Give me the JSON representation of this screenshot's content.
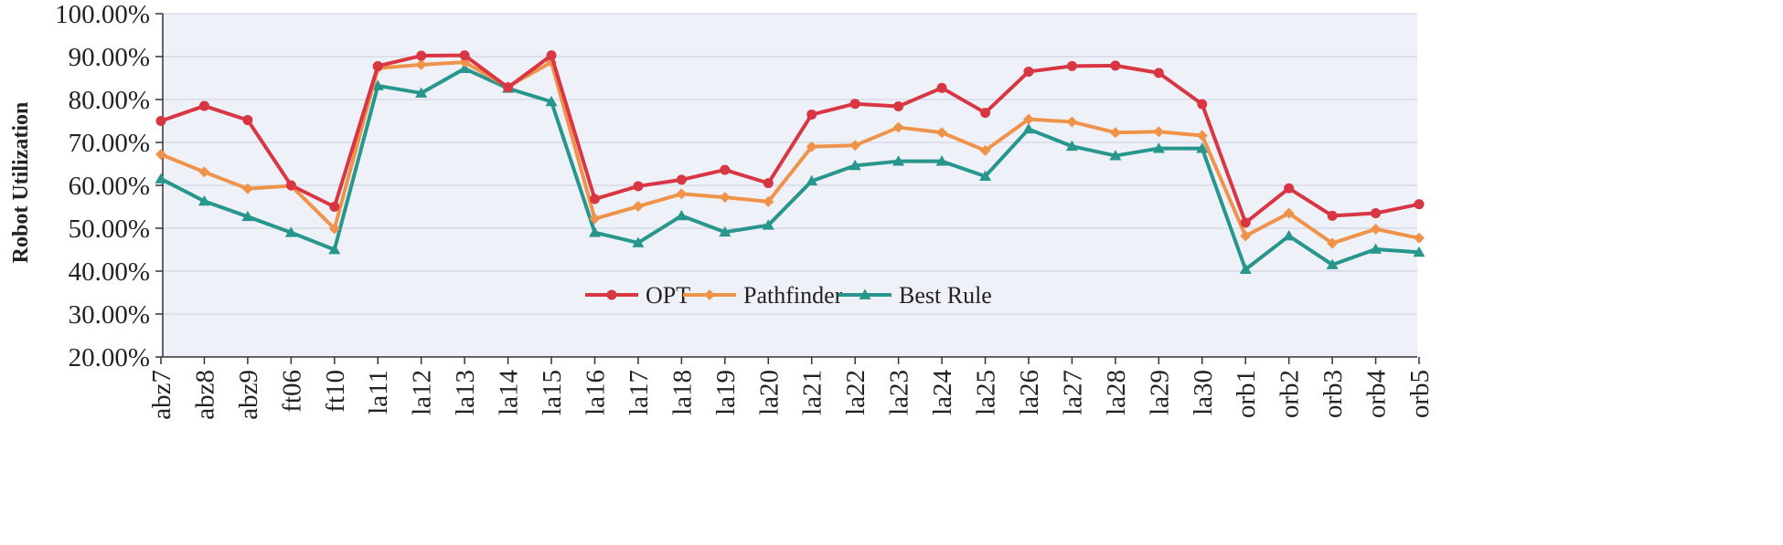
{
  "chart_data": {
    "type": "line",
    "title": "",
    "xlabel": "",
    "ylabel": "Robot Utilization",
    "ylim": [
      20,
      100
    ],
    "yticks": [
      "20.00%",
      "30.00%",
      "40.00%",
      "50.00%",
      "60.00%",
      "70.00%",
      "80.00%",
      "90.00%",
      "100.00%"
    ],
    "categories": [
      "abz7",
      "abz8",
      "abz9",
      "ft06",
      "ft10",
      "la11",
      "la12",
      "la13",
      "la14",
      "la15",
      "la16",
      "la17",
      "la18",
      "la19",
      "la20",
      "la21",
      "la22",
      "la23",
      "la24",
      "la25",
      "la26",
      "la27",
      "la28",
      "la29",
      "la30",
      "orb1",
      "orb2",
      "orb3",
      "orb4",
      "orb5"
    ],
    "legend_position": "center-bottom",
    "series": [
      {
        "name": "OPT",
        "color": "#d93644",
        "marker": "circle",
        "values": [
          75.0,
          78.5,
          75.2,
          60.0,
          55.0,
          87.8,
          90.2,
          90.3,
          82.8,
          90.3,
          56.8,
          59.8,
          61.3,
          63.6,
          60.5,
          76.5,
          79.0,
          78.4,
          82.7,
          76.9,
          86.5,
          87.8,
          87.9,
          86.2,
          78.9,
          51.3,
          59.3,
          52.9,
          53.5,
          55.6
        ]
      },
      {
        "name": "Pathfinder",
        "color": "#f0934a",
        "marker": "diamond",
        "values": [
          67.2,
          63.1,
          59.2,
          59.9,
          49.9,
          87.3,
          88.1,
          88.7,
          83.0,
          88.7,
          52.2,
          55.1,
          58.0,
          57.2,
          56.2,
          69.0,
          69.3,
          73.5,
          72.3,
          68.1,
          75.4,
          74.8,
          72.3,
          72.5,
          71.6,
          48.2,
          53.5,
          46.5,
          49.8,
          47.7
        ]
      },
      {
        "name": "Best Rule",
        "color": "#27968d",
        "marker": "triangle",
        "values": [
          61.5,
          56.3,
          52.7,
          49.0,
          45.0,
          83.2,
          81.5,
          87.2,
          82.6,
          79.5,
          49.0,
          46.6,
          52.9,
          49.1,
          50.7,
          61.0,
          64.6,
          65.6,
          65.6,
          62.1,
          73.1,
          69.1,
          66.9,
          68.6,
          68.6,
          40.4,
          48.2,
          41.5,
          45.1,
          44.4
        ]
      }
    ]
  }
}
